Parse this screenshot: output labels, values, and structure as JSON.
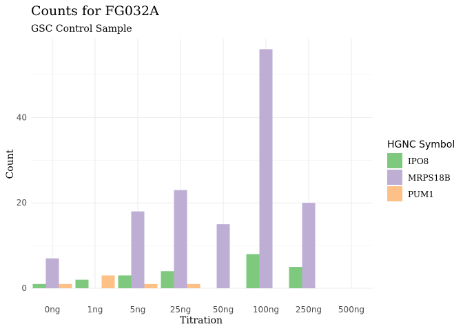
{
  "chart_data": {
    "type": "bar",
    "title": "Counts for FG032A",
    "subtitle": "GSC Control Sample",
    "xlabel": "Titration",
    "ylabel": "Count",
    "categories": [
      "0ng",
      "1ng",
      "5ng",
      "25ng",
      "50ng",
      "100ng",
      "250ng",
      "500ng"
    ],
    "series": [
      {
        "name": "IPO8",
        "color": "#7fc97f",
        "values": [
          1,
          2,
          3,
          4,
          0,
          8,
          5,
          0
        ]
      },
      {
        "name": "MRPS18B",
        "color": "#beaed4",
        "values": [
          7,
          0,
          18,
          23,
          15,
          56,
          20,
          0
        ]
      },
      {
        "name": "PUM1",
        "color": "#fdc086",
        "values": [
          1,
          3,
          1,
          1,
          0,
          0,
          0,
          0
        ]
      }
    ],
    "ylim": [
      0,
      58
    ],
    "yticks": [
      0,
      20,
      40
    ],
    "legend": {
      "title": "HGNC Symbol",
      "position": "right"
    },
    "grid": true
  }
}
